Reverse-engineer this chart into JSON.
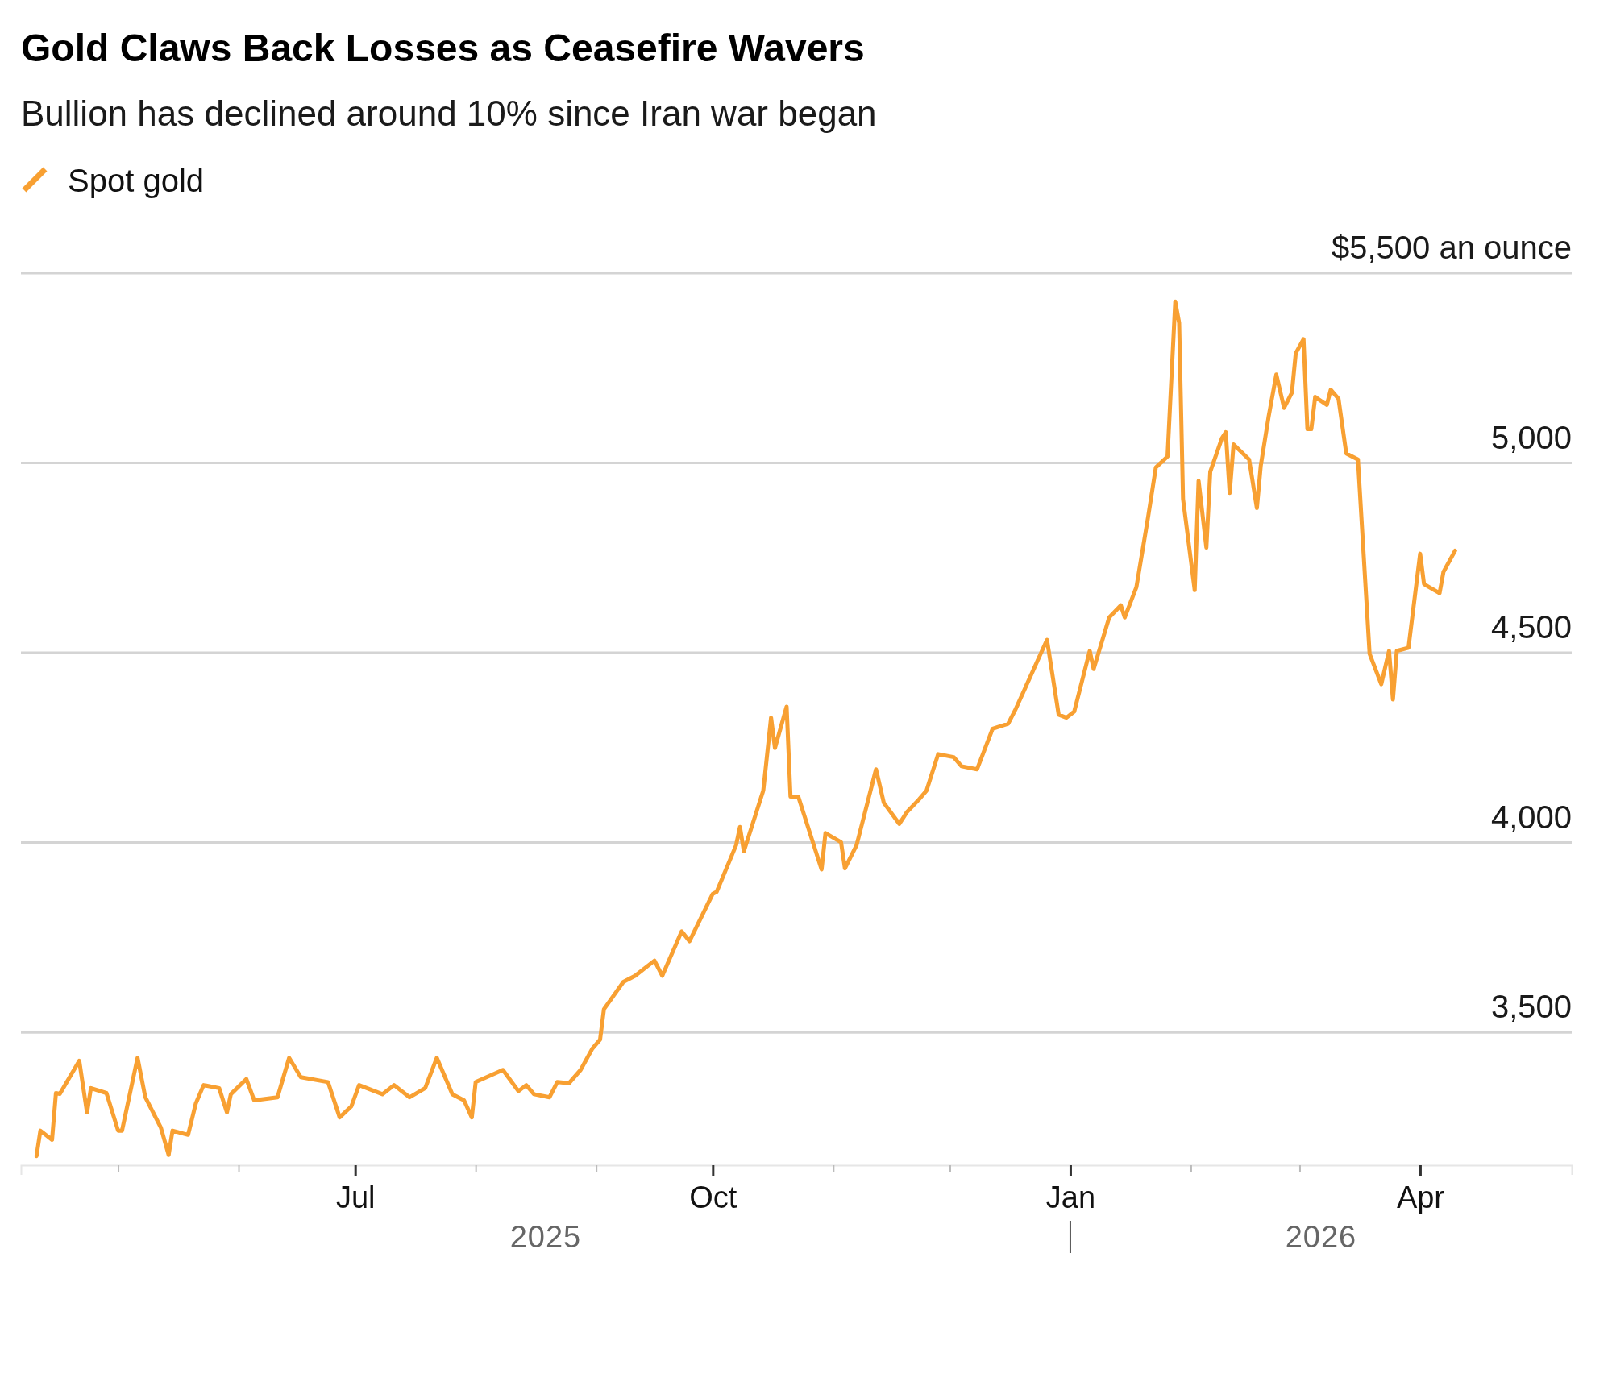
{
  "chart_data": {
    "type": "line",
    "title": "Gold Claws Back Losses as Ceasefire Wavers",
    "subtitle": "Bullion has declined around 10% since Iran war began",
    "x": [
      "2025-04-10",
      "2025-04-11",
      "2025-04-14",
      "2025-04-15",
      "2025-04-16",
      "2025-04-21",
      "2025-04-23",
      "2025-04-24",
      "2025-04-28",
      "2025-05-01",
      "2025-05-02",
      "2025-05-06",
      "2025-05-08",
      "2025-05-12",
      "2025-05-14",
      "2025-05-15",
      "2025-05-19",
      "2025-05-21",
      "2025-05-23",
      "2025-05-27",
      "2025-05-29",
      "2025-05-30",
      "2025-06-03",
      "2025-06-05",
      "2025-06-11",
      "2025-06-14",
      "2025-06-17",
      "2025-06-24",
      "2025-06-27",
      "2025-06-30",
      "2025-07-02",
      "2025-07-08",
      "2025-07-11",
      "2025-07-15",
      "2025-07-19",
      "2025-07-22",
      "2025-07-26",
      "2025-07-29",
      "2025-07-31",
      "2025-08-01",
      "2025-08-08",
      "2025-08-12",
      "2025-08-14",
      "2025-08-16",
      "2025-08-20",
      "2025-08-22",
      "2025-08-25",
      "2025-08-28",
      "2025-08-31",
      "2025-09-02",
      "2025-09-03",
      "2025-09-08",
      "2025-09-11",
      "2025-09-16",
      "2025-09-18",
      "2025-09-23",
      "2025-09-25",
      "2025-10-01",
      "2025-10-02",
      "2025-10-07",
      "2025-10-08",
      "2025-10-09",
      "2025-10-14",
      "2025-10-16",
      "2025-10-17",
      "2025-10-20",
      "2025-10-21",
      "2025-10-23",
      "2025-10-29",
      "2025-10-30",
      "2025-11-03",
      "2025-11-04",
      "2025-11-07",
      "2025-11-12",
      "2025-11-14",
      "2025-11-18",
      "2025-11-20",
      "2025-11-23",
      "2025-11-25",
      "2025-11-28",
      "2025-12-02",
      "2025-12-04",
      "2025-12-08",
      "2025-12-12",
      "2025-12-16",
      "2025-12-18",
      "2025-12-24",
      "2025-12-26",
      "2025-12-29",
      "2025-12-31",
      "2026-01-02",
      "2026-01-06",
      "2026-01-07",
      "2026-01-11",
      "2026-01-14",
      "2026-01-15",
      "2026-01-18",
      "2026-01-21",
      "2026-01-23",
      "2026-01-26",
      "2026-01-28",
      "2026-01-29",
      "2026-01-30",
      "2026-02-02",
      "2026-02-03",
      "2026-02-05",
      "2026-02-06",
      "2026-02-09",
      "2026-02-10",
      "2026-02-11",
      "2026-02-12",
      "2026-02-16",
      "2026-02-18",
      "2026-02-19",
      "2026-02-21",
      "2026-02-23",
      "2026-02-25",
      "2026-02-27",
      "2026-02-28",
      "2026-03-02",
      "2026-03-03",
      "2026-03-04",
      "2026-03-05",
      "2026-03-08",
      "2026-03-09",
      "2026-03-11",
      "2026-03-13",
      "2026-03-16",
      "2026-03-19",
      "2026-03-22",
      "2026-03-24",
      "2026-03-25",
      "2026-03-26",
      "2026-03-29",
      "2026-04-01",
      "2026-04-02",
      "2026-04-06",
      "2026-04-07",
      "2026-04-10"
    ],
    "series": [
      {
        "name": "Spot gold",
        "color": "#f8a032",
        "values": [
          3174,
          3241,
          3217,
          3340,
          3338,
          3425,
          3289,
          3353,
          3340,
          3241,
          3241,
          3433,
          3329,
          3249,
          3177,
          3241,
          3230,
          3313,
          3361,
          3353,
          3289,
          3337,
          3377,
          3321,
          3329,
          3433,
          3382,
          3369,
          3276,
          3305,
          3361,
          3337,
          3361,
          3329,
          3353,
          3433,
          3337,
          3321,
          3276,
          3369,
          3401,
          3345,
          3361,
          3337,
          3329,
          3369,
          3366,
          3401,
          3457,
          3481,
          3561,
          3633,
          3649,
          3689,
          3649,
          3766,
          3740,
          3865,
          3870,
          3993,
          4041,
          3977,
          4137,
          4329,
          4249,
          4358,
          4121,
          4121,
          3929,
          4025,
          4001,
          3932,
          3993,
          4193,
          4105,
          4049,
          4081,
          4113,
          4137,
          4233,
          4225,
          4201,
          4193,
          4300,
          4313,
          4353,
          4489,
          4534,
          4337,
          4329,
          4345,
          4505,
          4457,
          4593,
          4625,
          4593,
          4673,
          4857,
          4988,
          5017,
          5425,
          5369,
          4905,
          4665,
          4953,
          4777,
          4977,
          5065,
          5081,
          4921,
          5049,
          5009,
          4881,
          4993,
          5121,
          5233,
          5145,
          5185,
          5289,
          5326,
          5089,
          5089,
          5174,
          5153,
          5193,
          5169,
          5025,
          5009,
          4497,
          4417,
          4505,
          4377,
          4505,
          4513,
          4761,
          4681,
          4657,
          4713,
          4769
        ]
      }
    ],
    "xlim": [
      "2025-04-06",
      "2026-05-10"
    ],
    "xticks": [
      {
        "value": "2025-05-01",
        "label": null
      },
      {
        "value": "2025-06-01",
        "label": null
      },
      {
        "value": "2025-07-01",
        "label": "Jul"
      },
      {
        "value": "2025-08-01",
        "label": null
      },
      {
        "value": "2025-09-01",
        "label": null
      },
      {
        "value": "2025-10-01",
        "label": "Oct"
      },
      {
        "value": "2025-11-01",
        "label": null
      },
      {
        "value": "2025-12-01",
        "label": null
      },
      {
        "value": "2026-01-01",
        "label": "Jan"
      },
      {
        "value": "2026-02-01",
        "label": null
      },
      {
        "value": "2026-03-01",
        "label": null
      },
      {
        "value": "2026-04-01",
        "label": "Apr"
      }
    ],
    "ylim": [
      3150,
      5500
    ],
    "yticks": [
      {
        "value": 3500,
        "label": "3,500"
      },
      {
        "value": 4000,
        "label": "4,000"
      },
      {
        "value": 4500,
        "label": "4,500"
      },
      {
        "value": 5000,
        "label": "5,000"
      },
      {
        "value": 5500,
        "label": "$5,500 an ounce"
      }
    ],
    "grid": "y",
    "legend": "top left",
    "line_style": "solid",
    "annotations": [
      "2025",
      "2026"
    ]
  }
}
